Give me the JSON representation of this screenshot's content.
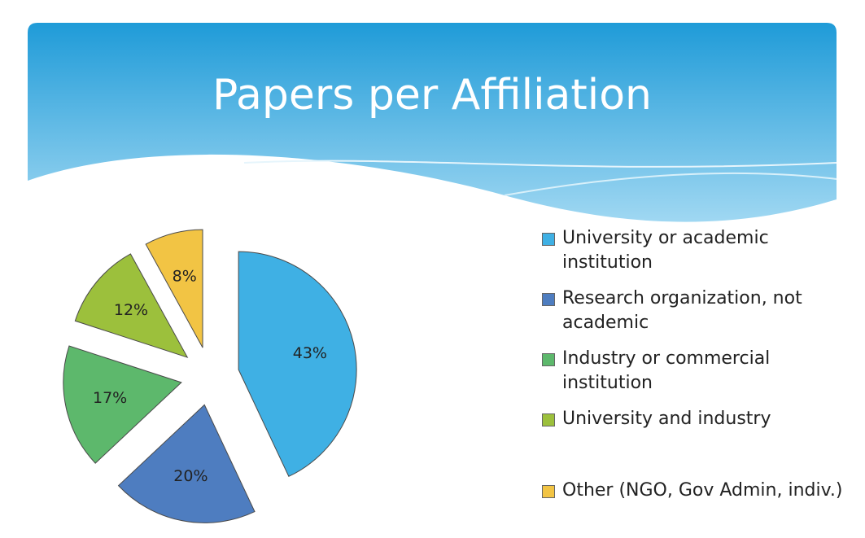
{
  "chart_data": {
    "type": "pie",
    "title": "Papers per Affiliation",
    "categories": [
      "University or academic institution",
      "Research organization, not academic",
      "Industry or commercial institution",
      "University and industry",
      "Other (NGO, Gov Admin, indiv.)"
    ],
    "values": [
      43,
      20,
      17,
      12,
      8
    ],
    "value_labels": [
      "43%",
      "20%",
      "17%",
      "12%",
      "8%"
    ],
    "colors": [
      "#3fb0e4",
      "#4e7dc0",
      "#5db86c",
      "#9cc03c",
      "#f2c444"
    ],
    "legend": "right"
  }
}
